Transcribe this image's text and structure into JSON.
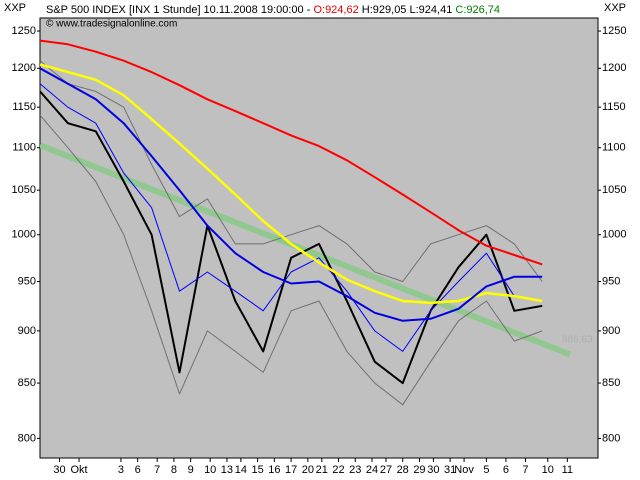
{
  "chart_data": {
    "type": "line",
    "header": {
      "symbol": "S&P 500 INDEX [INX 1 Stunde] 10.11.2008 19:00:00 -",
      "open": "O:924,62",
      "high": "H:929,05",
      "low": "L:924,41",
      "close": "C:926,74",
      "open_color": "#e00000",
      "close_color": "#008000"
    },
    "copyright": "© www.tradesignalonline.com",
    "axis_label_left": "XXP",
    "axis_label_right": "XXP",
    "watermark": "886,63",
    "log_scale": true,
    "background": "#c0c0c0",
    "ylim": [
      783,
      1268
    ],
    "yticks": [
      800,
      850,
      900,
      950,
      1000,
      1050,
      1100,
      1150,
      1200,
      1250
    ],
    "xlim": [
      0,
      200
    ],
    "xticks": [
      {
        "value": 7,
        "label": "30"
      },
      {
        "value": 14,
        "label": "Okt"
      },
      {
        "value": 29,
        "label": "3"
      },
      {
        "value": 35,
        "label": "6"
      },
      {
        "value": 42,
        "label": "7"
      },
      {
        "value": 48,
        "label": "8"
      },
      {
        "value": 54,
        "label": "9"
      },
      {
        "value": 61,
        "label": "10"
      },
      {
        "value": 67,
        "label": "13"
      },
      {
        "value": 72,
        "label": "14"
      },
      {
        "value": 78,
        "label": "15"
      },
      {
        "value": 84,
        "label": "16"
      },
      {
        "value": 90,
        "label": "17"
      },
      {
        "value": 96,
        "label": "20"
      },
      {
        "value": 101,
        "label": "21"
      },
      {
        "value": 107,
        "label": "22"
      },
      {
        "value": 113,
        "label": "23"
      },
      {
        "value": 119,
        "label": "24"
      },
      {
        "value": 124,
        "label": "27"
      },
      {
        "value": 130,
        "label": "28"
      },
      {
        "value": 136,
        "label": "29"
      },
      {
        "value": 141,
        "label": "30"
      },
      {
        "value": 147,
        "label": "31"
      },
      {
        "value": 152,
        "label": "Nov"
      },
      {
        "value": 160,
        "label": "5"
      },
      {
        "value": 167,
        "label": "6"
      },
      {
        "value": 174,
        "label": "7"
      },
      {
        "value": 182,
        "label": "10"
      },
      {
        "value": 189,
        "label": "11"
      }
    ],
    "x": [
      0,
      10,
      20,
      30,
      40,
      50,
      60,
      70,
      80,
      90,
      100,
      110,
      120,
      130,
      140,
      150,
      160,
      170,
      180
    ],
    "series": [
      {
        "color": "#90c890",
        "width": 6,
        "x": [
          0,
          190
        ],
        "values": [
          1103,
          877
        ]
      },
      {
        "color": "#707070",
        "width": 1,
        "values": [
          1210,
          1180,
          1170,
          1150,
          1080,
          1020,
          1040,
          990,
          990,
          1000,
          1010,
          990,
          960,
          950,
          990,
          1000,
          1010,
          990,
          950
        ]
      },
      {
        "color": "#707070",
        "width": 1,
        "values": [
          1140,
          1100,
          1060,
          1000,
          920,
          840,
          900,
          880,
          860,
          920,
          930,
          880,
          850,
          830,
          870,
          910,
          930,
          890,
          900
        ]
      },
      {
        "color": "#000000",
        "width": 2,
        "values": [
          1170,
          1130,
          1120,
          1060,
          1000,
          860,
          1010,
          930,
          880,
          975,
          990,
          930,
          870,
          850,
          920,
          965,
          1000,
          920,
          925
        ]
      },
      {
        "color": "#0000ff",
        "width": 1,
        "values": [
          1180,
          1150,
          1130,
          1070,
          1030,
          940,
          960,
          940,
          920,
          960,
          975,
          940,
          900,
          880,
          920,
          950,
          980,
          935,
          930
        ]
      },
      {
        "color": "#ff0000",
        "width": 2,
        "values": [
          1237,
          1232,
          1222,
          1210,
          1195,
          1178,
          1160,
          1145,
          1130,
          1115,
          1102,
          1085,
          1065,
          1045,
          1025,
          1005,
          988,
          978,
          968
        ]
      },
      {
        "color": "#ffff00",
        "width": 2.5,
        "values": [
          1205,
          1195,
          1185,
          1165,
          1135,
          1105,
          1075,
          1045,
          1015,
          990,
          970,
          952,
          940,
          930,
          928,
          930,
          938,
          935,
          930
        ]
      },
      {
        "color": "#0000e0",
        "width": 2,
        "values": [
          1200,
          1180,
          1160,
          1130,
          1090,
          1050,
          1010,
          980,
          960,
          948,
          950,
          935,
          918,
          910,
          912,
          922,
          945,
          955,
          955
        ]
      }
    ]
  }
}
